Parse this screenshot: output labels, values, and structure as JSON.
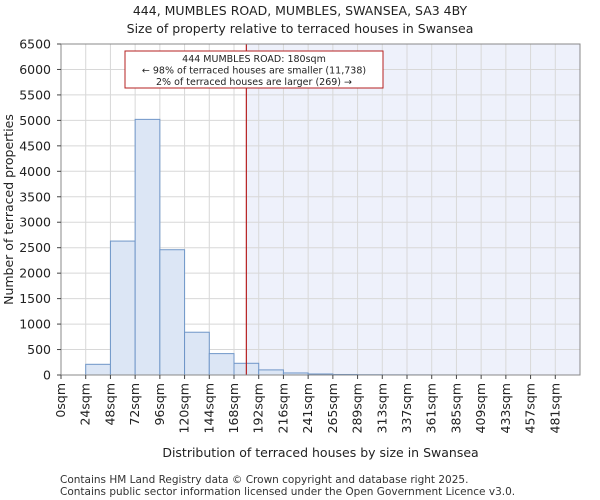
{
  "chart_data": {
    "type": "bar",
    "title": "444, MUMBLES ROAD, MUMBLES, SWANSEA, SA3 4BY",
    "subtitle": "Size of property relative to terraced houses in Swansea",
    "xlabel": "Distribution of terraced houses by size in Swansea",
    "ylabel": "Number of terraced properties",
    "categories": [
      "0sqm",
      "24sqm",
      "48sqm",
      "72sqm",
      "96sqm",
      "120sqm",
      "144sqm",
      "168sqm",
      "192sqm",
      "216sqm",
      "241sqm",
      "265sqm",
      "289sqm",
      "313sqm",
      "337sqm",
      "361sqm",
      "385sqm",
      "409sqm",
      "433sqm",
      "457sqm",
      "481sqm"
    ],
    "values": [
      0,
      210,
      2630,
      5020,
      2460,
      840,
      420,
      230,
      100,
      40,
      20,
      10,
      5,
      3,
      2,
      1,
      1,
      0,
      0,
      0,
      0
    ],
    "yticks": [
      0,
      500,
      1000,
      1500,
      2000,
      2500,
      3000,
      3500,
      4000,
      4500,
      5000,
      5500,
      6000,
      6500
    ],
    "ylim": [
      0,
      6500
    ],
    "marker_value": 180,
    "bin_width": 24,
    "annotation": {
      "line1": "444 MUMBLES ROAD: 180sqm",
      "line2": "← 98% of terraced houses are smaller (11,738)",
      "line3": "2% of terraced houses are larger (269) →"
    },
    "colors": {
      "bar_fill": "#dce6f5",
      "bar_stroke": "#6f96c8",
      "highlight_bg": "#eef1fb",
      "marker_line": "#b52020",
      "grid": "#d8d8d8"
    }
  },
  "footer": {
    "line1": "Contains HM Land Registry data © Crown copyright and database right 2025.",
    "line2": "Contains public sector information licensed under the Open Government Licence v3.0."
  }
}
